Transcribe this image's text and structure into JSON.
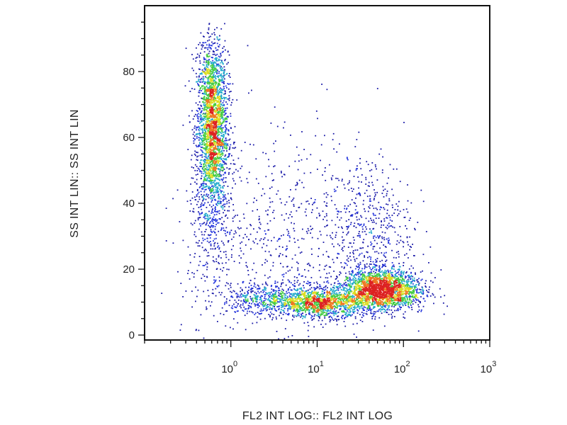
{
  "chart_data": {
    "type": "scatter",
    "subtype": "flow-cytometry-density-dot-plot",
    "title": "",
    "xlabel": "FL2 INT LOG:: FL2 INT LOG",
    "ylabel": "SS INT LIN:: SS INT LIN",
    "x_scale": "log",
    "xlim": [
      0.1,
      1000
    ],
    "x_ticks": [
      {
        "value": 1,
        "base": "10",
        "exp": "0"
      },
      {
        "value": 10,
        "base": "10",
        "exp": "1"
      },
      {
        "value": 100,
        "base": "10",
        "exp": "2"
      },
      {
        "value": 1000,
        "base": "10",
        "exp": "3"
      }
    ],
    "ylim": [
      -1.5,
      100
    ],
    "y_ticks": [
      0,
      20,
      40,
      60,
      80
    ],
    "grid": false,
    "colormap": [
      "#1a1aa8",
      "#2233dd",
      "#22aacc",
      "#44cc44",
      "#dddd22",
      "#ee7722",
      "#dd2222"
    ],
    "populations": [
      {
        "center_x": 0.6,
        "center_y": 62,
        "x_spread_decades": 0.09,
        "y_spread": 10,
        "density": "high",
        "peak_color": "#dddd22"
      },
      {
        "center_x": 11,
        "center_y": 10,
        "x_spread_decades": 0.25,
        "y_spread": 2.5,
        "density": "high",
        "peak_color": "#ee7722"
      },
      {
        "center_x": 50,
        "center_y": 14,
        "x_spread_decades": 0.2,
        "y_spread": 3,
        "density": "very-high",
        "peak_color": "#dd2222"
      },
      {
        "center_x": 3,
        "center_y": 11,
        "x_spread_decades": 0.3,
        "y_spread": 2.5,
        "density": "medium",
        "peak_color": "#22aacc"
      },
      {
        "center_x": 40,
        "center_y": 35,
        "x_spread_decades": 0.25,
        "y_spread": 12,
        "density": "low",
        "peak_color": "#2233dd"
      }
    ]
  }
}
